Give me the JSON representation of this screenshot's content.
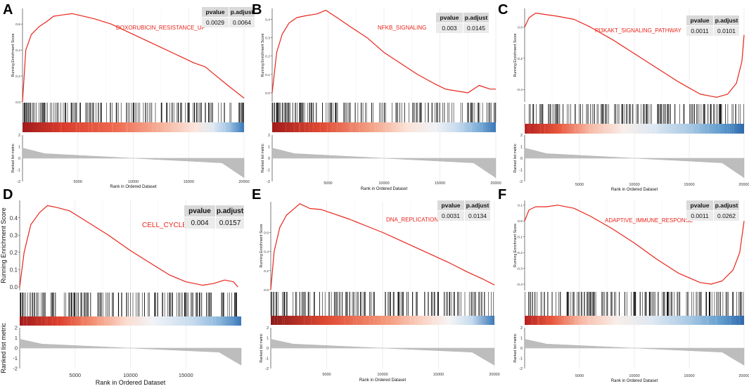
{
  "panels": [
    {
      "id": "A",
      "label": "A",
      "geneset": "DOXORUBICIN_RESISTANCE_UP",
      "pvalue": "0.0029",
      "padjust": "0.0064"
    },
    {
      "id": "B",
      "label": "B",
      "geneset": "NFKB_SIGNALING",
      "pvalue": "0.003",
      "padjust": "0.0145"
    },
    {
      "id": "C",
      "label": "C",
      "geneset": "PI3KAKT_SIGNALING_PATHWAY",
      "pvalue": "0.0011",
      "padjust": "0.0101"
    },
    {
      "id": "D",
      "label": "D",
      "geneset": "CELL_CYCLE",
      "pvalue": "0.004",
      "padjust": "0.0157"
    },
    {
      "id": "E",
      "label": "E",
      "geneset": "DNA_REPLICATION",
      "pvalue": "0.0031",
      "padjust": "0.0134"
    },
    {
      "id": "F",
      "label": "F",
      "geneset": "ADAPTIVE_IMMUNE_RESPONSE",
      "pvalue": "0.0011",
      "padjust": "0.0262"
    }
  ],
  "table_headers": {
    "pvalue": "pvalue",
    "padjust": "p.adjust"
  },
  "colors": {
    "curve": "#e8251b",
    "grid": "#e3e3e3",
    "rank_fill": "#bdbdbd",
    "hits": "#000000",
    "heat_red_dark": "#8b1a1a",
    "heat_red": "#e34a33",
    "heat_light": "#fce0d6",
    "heat_white": "#f5f5f5",
    "heat_blue": "#4682c0"
  },
  "chart_data": [
    {
      "panel": "A",
      "type": "line",
      "title": "DOXORUBICIN_RESISTANCE_UP",
      "ylabel": "Running Enrichment Score",
      "ylabel_rank": "Ranked list metric",
      "xlabel": "Rank in Ordered Dataset",
      "x_ticks": [
        "5000",
        "10000",
        "15000",
        "20000"
      ],
      "y_ticks": [
        "0.0",
        "0.2",
        "0.4",
        "0.6"
      ],
      "ylim": [
        0,
        0.72
      ],
      "rank_ticks": [
        "2",
        "1",
        "0",
        "-1",
        "-2"
      ],
      "xlim": [
        0,
        20000
      ],
      "es_curve": [
        [
          0,
          0.0
        ],
        [
          300,
          0.4
        ],
        [
          800,
          0.52
        ],
        [
          1500,
          0.58
        ],
        [
          2200,
          0.62
        ],
        [
          2800,
          0.66
        ],
        [
          3600,
          0.67
        ],
        [
          4500,
          0.68
        ],
        [
          5500,
          0.66
        ],
        [
          6500,
          0.64
        ],
        [
          8000,
          0.6
        ],
        [
          10000,
          0.52
        ],
        [
          12000,
          0.44
        ],
        [
          14000,
          0.36
        ],
        [
          15500,
          0.3
        ],
        [
          16500,
          0.27
        ],
        [
          17500,
          0.2
        ],
        [
          18500,
          0.13
        ],
        [
          20000,
          0.03
        ]
      ]
    },
    {
      "panel": "B",
      "type": "line",
      "title": "NFKB_SIGNALING",
      "ylabel": "Running Enrichment Score",
      "ylabel_rank": "Ranked list metric",
      "xlabel": "Rank in Ordered Dataset",
      "x_ticks": [
        "5000",
        "10000",
        "15000",
        "20000"
      ],
      "y_ticks": [
        "0.0",
        "0.1",
        "0.2",
        "0.3",
        "0.4"
      ],
      "ylim": [
        -0.05,
        0.46
      ],
      "rank_ticks": [
        "2",
        "1",
        "0",
        "-1",
        "-2"
      ],
      "xlim": [
        0,
        20000
      ],
      "es_curve": [
        [
          0,
          0.0
        ],
        [
          400,
          0.22
        ],
        [
          900,
          0.32
        ],
        [
          1500,
          0.38
        ],
        [
          2200,
          0.41
        ],
        [
          3000,
          0.42
        ],
        [
          4000,
          0.43
        ],
        [
          4800,
          0.45
        ],
        [
          5800,
          0.41
        ],
        [
          7000,
          0.36
        ],
        [
          8500,
          0.3
        ],
        [
          10000,
          0.22
        ],
        [
          11500,
          0.16
        ],
        [
          13000,
          0.1
        ],
        [
          14500,
          0.05
        ],
        [
          15500,
          0.02
        ],
        [
          16500,
          0.01
        ],
        [
          17500,
          0.0
        ],
        [
          18500,
          0.04
        ],
        [
          19500,
          0.02
        ],
        [
          20000,
          0.02
        ]
      ]
    },
    {
      "panel": "C",
      "type": "line",
      "title": "PI3KAKT_SIGNALING_PATHWAY",
      "ylabel": "Running Enrichment Score",
      "ylabel_rank": "Ranked list metric",
      "xlabel": "Rank in Ordered Dataset",
      "x_ticks": [
        "5000",
        "10000",
        "15000",
        "20000"
      ],
      "y_ticks": [
        "0.0",
        "-0.2",
        "-0.4"
      ],
      "ylim": [
        -0.48,
        0.12
      ],
      "rank_ticks": [
        "2",
        "1",
        "0",
        "-1",
        "-2"
      ],
      "xlim": [
        0,
        20000
      ],
      "es_curve": [
        [
          0,
          0.0
        ],
        [
          400,
          0.06
        ],
        [
          1000,
          0.09
        ],
        [
          2000,
          0.08
        ],
        [
          3000,
          0.07
        ],
        [
          4500,
          0.05
        ],
        [
          6000,
          0.0
        ],
        [
          8000,
          -0.08
        ],
        [
          10000,
          -0.17
        ],
        [
          12000,
          -0.26
        ],
        [
          14000,
          -0.35
        ],
        [
          16000,
          -0.43
        ],
        [
          17500,
          -0.45
        ],
        [
          18500,
          -0.43
        ],
        [
          19300,
          -0.36
        ],
        [
          19800,
          -0.22
        ],
        [
          20000,
          -0.05
        ]
      ]
    },
    {
      "panel": "D",
      "type": "line",
      "title": "CELL_CYCLE",
      "ylabel": "Running Enrichment Score",
      "ylabel_rank": "Ranked list metric",
      "xlabel": "Rank in Ordered Dataset",
      "x_ticks": [
        "5000",
        "10000",
        "15000"
      ],
      "y_ticks": [
        "0.0",
        "0.1",
        "0.2",
        "0.3",
        "0.4"
      ],
      "ylim": [
        -0.02,
        0.5
      ],
      "rank_ticks": [
        "2",
        "1",
        "0",
        "-1",
        "-2"
      ],
      "xlim": [
        0,
        20000
      ],
      "es_curve": [
        [
          0,
          0.0
        ],
        [
          400,
          0.2
        ],
        [
          1000,
          0.36
        ],
        [
          1800,
          0.43
        ],
        [
          2500,
          0.47
        ],
        [
          3300,
          0.46
        ],
        [
          4500,
          0.44
        ],
        [
          6000,
          0.38
        ],
        [
          8000,
          0.3
        ],
        [
          10000,
          0.21
        ],
        [
          12000,
          0.13
        ],
        [
          13500,
          0.07
        ],
        [
          15000,
          0.03
        ],
        [
          16500,
          0.01
        ],
        [
          17500,
          0.02
        ],
        [
          18500,
          0.04
        ],
        [
          19300,
          0.03
        ],
        [
          19700,
          0.0
        ]
      ]
    },
    {
      "panel": "E",
      "type": "line",
      "title": "DNA_REPLICATION",
      "ylabel": "Running Enrichment Score",
      "ylabel_rank": "Ranked list metric",
      "xlabel": "Rank in Ordered Dataset",
      "x_ticks": [
        "5000",
        "10000",
        "15000",
        "20000"
      ],
      "y_ticks": [
        "0.0",
        "0.2",
        "0.4",
        "0.6"
      ],
      "ylim": [
        0,
        0.92
      ],
      "rank_ticks": [
        "2",
        "1",
        "0",
        "-1",
        "-2"
      ],
      "xlim": [
        0,
        20000
      ],
      "es_curve": [
        [
          0,
          0.0
        ],
        [
          300,
          0.4
        ],
        [
          800,
          0.65
        ],
        [
          1400,
          0.78
        ],
        [
          2000,
          0.84
        ],
        [
          2600,
          0.9
        ],
        [
          3500,
          0.85
        ],
        [
          4500,
          0.84
        ],
        [
          5500,
          0.8
        ],
        [
          7000,
          0.74
        ],
        [
          8500,
          0.67
        ],
        [
          10000,
          0.6
        ],
        [
          11500,
          0.52
        ],
        [
          13000,
          0.44
        ],
        [
          14500,
          0.36
        ],
        [
          16000,
          0.28
        ],
        [
          17500,
          0.19
        ],
        [
          19000,
          0.11
        ],
        [
          20000,
          0.05
        ]
      ]
    },
    {
      "panel": "F",
      "type": "line",
      "title": "ADAPTIVE_IMMUNE_RESPONSE",
      "ylabel": "Running Enrichment Score",
      "ylabel_rank": "Ranked list metric",
      "xlabel": "Rank in Ordered Dataset",
      "x_ticks": [
        "5000",
        "10000",
        "15000",
        "20000"
      ],
      "y_ticks": [
        "0.1",
        "0.0",
        "-0.1",
        "-0.2",
        "-0.3",
        "-0.4"
      ],
      "ylim": [
        -0.44,
        0.13
      ],
      "rank_ticks": [
        "2",
        "1",
        "0",
        "-1",
        "-2"
      ],
      "xlim": [
        0,
        20000
      ],
      "es_curve": [
        [
          0,
          0.0
        ],
        [
          400,
          0.07
        ],
        [
          1000,
          0.09
        ],
        [
          2000,
          0.09
        ],
        [
          3000,
          0.1
        ],
        [
          4500,
          0.08
        ],
        [
          6000,
          0.03
        ],
        [
          8000,
          -0.05
        ],
        [
          10000,
          -0.14
        ],
        [
          12000,
          -0.24
        ],
        [
          14000,
          -0.33
        ],
        [
          16000,
          -0.39
        ],
        [
          17000,
          -0.4
        ],
        [
          18000,
          -0.38
        ],
        [
          19000,
          -0.31
        ],
        [
          19600,
          -0.2
        ],
        [
          20000,
          0.0
        ]
      ]
    }
  ]
}
